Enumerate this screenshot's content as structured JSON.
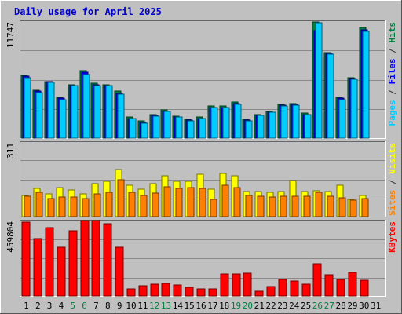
{
  "chart_data": {
    "type": "bar",
    "title": "Daily usage for April 2025",
    "days": [
      "1",
      "2",
      "3",
      "4",
      "5",
      "6",
      "7",
      "8",
      "9",
      "10",
      "11",
      "12",
      "13",
      "14",
      "15",
      "16",
      "17",
      "18",
      "19",
      "20",
      "21",
      "22",
      "23",
      "24",
      "25",
      "26",
      "27",
      "28",
      "29",
      "30",
      "31"
    ],
    "weekend_days": [
      5,
      6,
      12,
      13,
      19,
      20,
      26,
      27
    ],
    "panels": [
      {
        "id": "hits-files-pages",
        "ymax": 11747,
        "ymax_label": "11747",
        "side_label_parts": [
          {
            "text": "Pages",
            "color": "#00ccff"
          },
          {
            "text": " / ",
            "color": "#333333"
          },
          {
            "text": "Files",
            "color": "#0000ff"
          },
          {
            "text": " / ",
            "color": "#333333"
          },
          {
            "text": "Hits",
            "color": "#008040"
          }
        ],
        "series": [
          {
            "name": "Hits",
            "color": "#008040",
            "values": [
              6300,
              4800,
              5700,
              4100,
              5400,
              6800,
              5500,
              5400,
              4700,
              2100,
              1700,
              2400,
              2800,
              2200,
              1900,
              2100,
              3200,
              3200,
              3600,
              1900,
              2400,
              2700,
              3400,
              3500,
              2500,
              11700,
              8600,
              4100,
              6100,
              11100,
              0
            ]
          },
          {
            "name": "Files",
            "color": "#0000ff",
            "values": [
              6200,
              4700,
              5700,
              4000,
              5300,
              6600,
              5400,
              5300,
              4500,
              2000,
              1600,
              2300,
              2700,
              2100,
              1800,
              2000,
              3100,
              3100,
              3500,
              1800,
              2300,
              2600,
              3300,
              3400,
              2400,
              10800,
              8500,
              4000,
              6000,
              10900,
              0
            ]
          },
          {
            "name": "Pages",
            "color": "#00ccff",
            "values": [
              6100,
              4600,
              5600,
              3900,
              5300,
              6400,
              5300,
              5300,
              4400,
              2000,
              1500,
              2200,
              2700,
              2100,
              1700,
              2000,
              3100,
              3100,
              3400,
              1700,
              2300,
              2600,
              3200,
              3300,
              2400,
              11600,
              8400,
              3900,
              5900,
              10700,
              0
            ]
          }
        ]
      },
      {
        "id": "visits-sites",
        "ymax": 311,
        "ymax_label": "311",
        "side_label_parts": [
          {
            "text": "Sites",
            "color": "#ff8000"
          },
          {
            "text": " / ",
            "color": "#333333"
          },
          {
            "text": "Visits",
            "color": "#ffff00"
          }
        ],
        "series": [
          {
            "name": "Visits",
            "color": "#ffff00",
            "values": [
              88,
              118,
              96,
              122,
              112,
              94,
              136,
              146,
              196,
              130,
              113,
              138,
              170,
              146,
              146,
              176,
              115,
              180,
              171,
              106,
              106,
              100,
              104,
              150,
              106,
              107,
              106,
              130,
              73,
              87,
              0
            ]
          },
          {
            "name": "Sites",
            "color": "#ff8000",
            "values": [
              84,
              102,
              74,
              82,
              82,
              76,
              96,
              103,
              153,
              102,
              88,
              98,
              125,
              118,
              120,
              118,
              72,
              130,
              120,
              90,
              84,
              82,
              84,
              84,
              84,
              100,
              84,
              80,
              68,
              74,
              0
            ]
          }
        ]
      },
      {
        "id": "kbytes",
        "ymax": 459804,
        "ymax_label": "459804",
        "side_label_parts": [
          {
            "text": "KBytes",
            "color": "#ff0000"
          }
        ],
        "series": [
          {
            "name": "KBytes",
            "color": "#ff0000",
            "values": [
              450000,
              348000,
              419000,
              296000,
              398000,
              462000,
              460000,
              439000,
              296000,
              41000,
              62000,
              70000,
              76000,
              68000,
              53000,
              43000,
              43000,
              135000,
              135000,
              140000,
              31000,
              58000,
              99000,
              90000,
              70000,
              195000,
              129000,
              100000,
              145000,
              97000,
              0
            ]
          }
        ]
      }
    ]
  }
}
